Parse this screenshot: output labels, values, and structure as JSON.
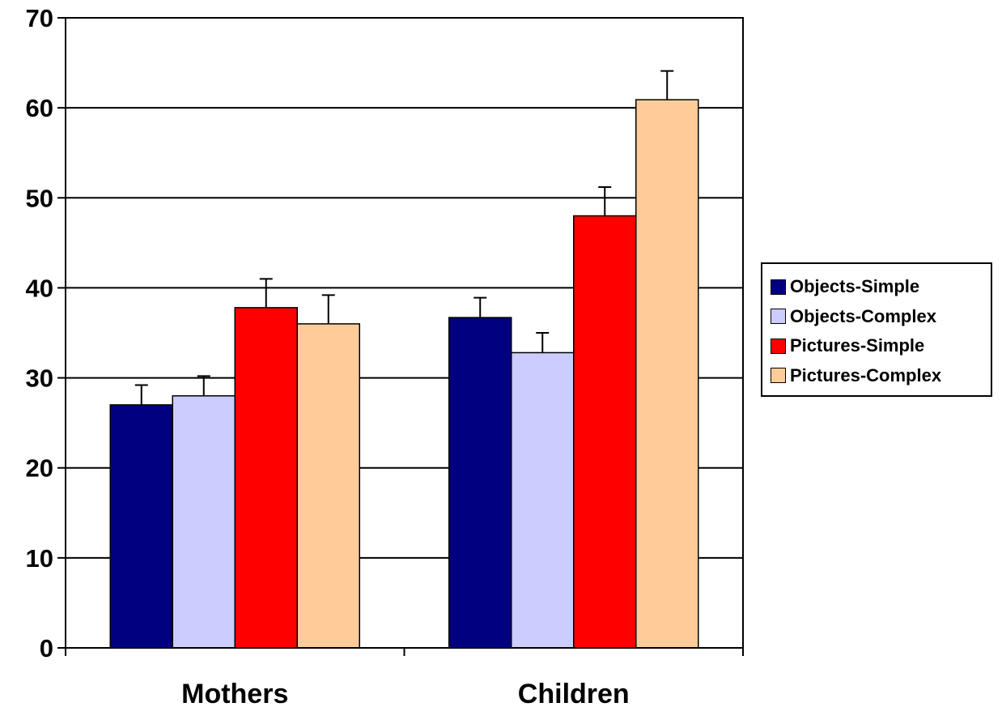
{
  "chart_data": {
    "type": "bar",
    "title": "",
    "xlabel": "",
    "ylabel": "",
    "categories": [
      "Mothers",
      "Children"
    ],
    "ylim": [
      0,
      70
    ],
    "yticks": [
      0,
      10,
      20,
      30,
      40,
      50,
      60,
      70
    ],
    "grid": true,
    "legend_position": "right",
    "error_bars": true,
    "series": [
      {
        "name": "Objects-Simple",
        "color": "#000080",
        "values": [
          27.0,
          36.7
        ],
        "errors": [
          2.2,
          2.2
        ]
      },
      {
        "name": "Objects-Complex",
        "color": "#CCCCFF",
        "values": [
          28.0,
          32.8
        ],
        "errors": [
          2.2,
          2.2
        ]
      },
      {
        "name": "Pictures-Simple",
        "color": "#FF0000",
        "values": [
          37.8,
          48.0
        ],
        "errors": [
          3.2,
          3.2
        ]
      },
      {
        "name": "Pictures-Complex",
        "color": "#FFCC99",
        "values": [
          36.0,
          60.9
        ],
        "errors": [
          3.2,
          3.2
        ]
      }
    ]
  }
}
